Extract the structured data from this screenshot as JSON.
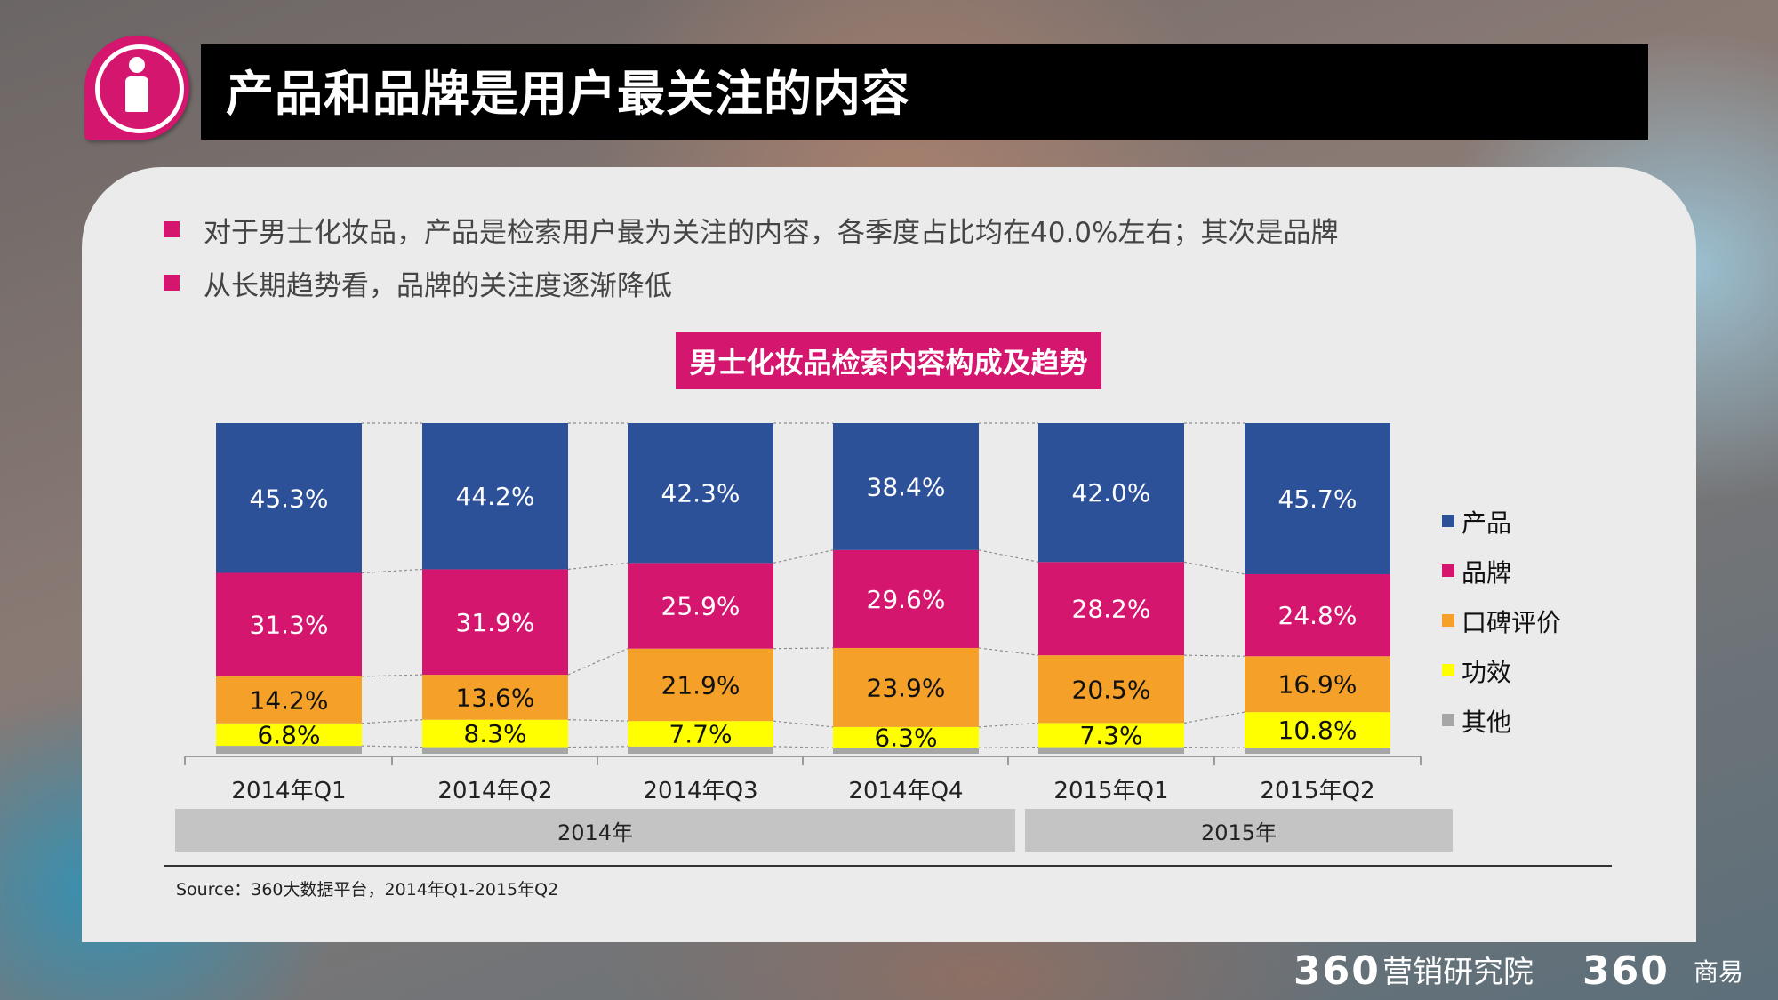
{
  "header": {
    "title": "产品和品牌是用户最关注的内容"
  },
  "bullets": [
    "对于男士化妆品，产品是检索用户最为关注的内容，各季度占比均在40.0%左右；其次是品牌",
    "从长期趋势看，品牌的关注度逐渐降低"
  ],
  "chart_title": "男士化妆品检索内容构成及趋势",
  "chart_data": {
    "type": "bar",
    "stacked": true,
    "normalized_100": true,
    "title": "男士化妆品检索内容构成及趋势",
    "categories": [
      "2014年Q1",
      "2014年Q2",
      "2014年Q3",
      "2014年Q4",
      "2015年Q1",
      "2015年Q2"
    ],
    "category_groups": [
      {
        "label": "2014年",
        "categories": [
          "2014年Q1",
          "2014年Q2",
          "2014年Q3",
          "2014年Q4"
        ]
      },
      {
        "label": "2015年",
        "categories": [
          "2015年Q1",
          "2015年Q2"
        ]
      }
    ],
    "series": [
      {
        "name": "其他",
        "color": "#a6a6a6",
        "values": [
          2.4,
          2.0,
          2.2,
          1.8,
          2.0,
          1.8
        ],
        "labels": [
          "",
          "",
          "",
          "",
          "",
          ""
        ]
      },
      {
        "name": "功效",
        "color": "#ffff00",
        "values": [
          6.8,
          8.3,
          7.7,
          6.3,
          7.3,
          10.8
        ],
        "labels": [
          "6.8%",
          "8.3%",
          "7.7%",
          "6.3%",
          "7.3%",
          "10.8%"
        ]
      },
      {
        "name": "口碑评价",
        "color": "#f5a028",
        "values": [
          14.2,
          13.6,
          21.9,
          23.9,
          20.5,
          16.9
        ],
        "labels": [
          "14.2%",
          "13.6%",
          "21.9%",
          "23.9%",
          "20.5%",
          "16.9%"
        ]
      },
      {
        "name": "品牌",
        "color": "#d5166f",
        "values": [
          31.3,
          31.9,
          25.9,
          29.6,
          28.2,
          24.8
        ],
        "labels": [
          "31.3%",
          "31.9%",
          "25.9%",
          "29.6%",
          "28.2%",
          "24.8%"
        ]
      },
      {
        "name": "产品",
        "color": "#2d5199",
        "values": [
          45.3,
          44.2,
          42.3,
          38.4,
          42.0,
          45.7
        ],
        "labels": [
          "45.3%",
          "44.2%",
          "42.3%",
          "38.4%",
          "42.0%",
          "45.7%"
        ]
      }
    ],
    "legend_order": [
      "产品",
      "品牌",
      "口碑评价",
      "功效",
      "其他"
    ],
    "legend_position": "right",
    "ylim": [
      0,
      100
    ]
  },
  "groups": {
    "g2014": "2014年",
    "g2015": "2015年"
  },
  "source": "Source：360大数据平台，2014年Q1-2015年Q2",
  "brand": {
    "mark1": "360",
    "text1": "营销研究院",
    "mark2": "360",
    "text2": "商易"
  }
}
